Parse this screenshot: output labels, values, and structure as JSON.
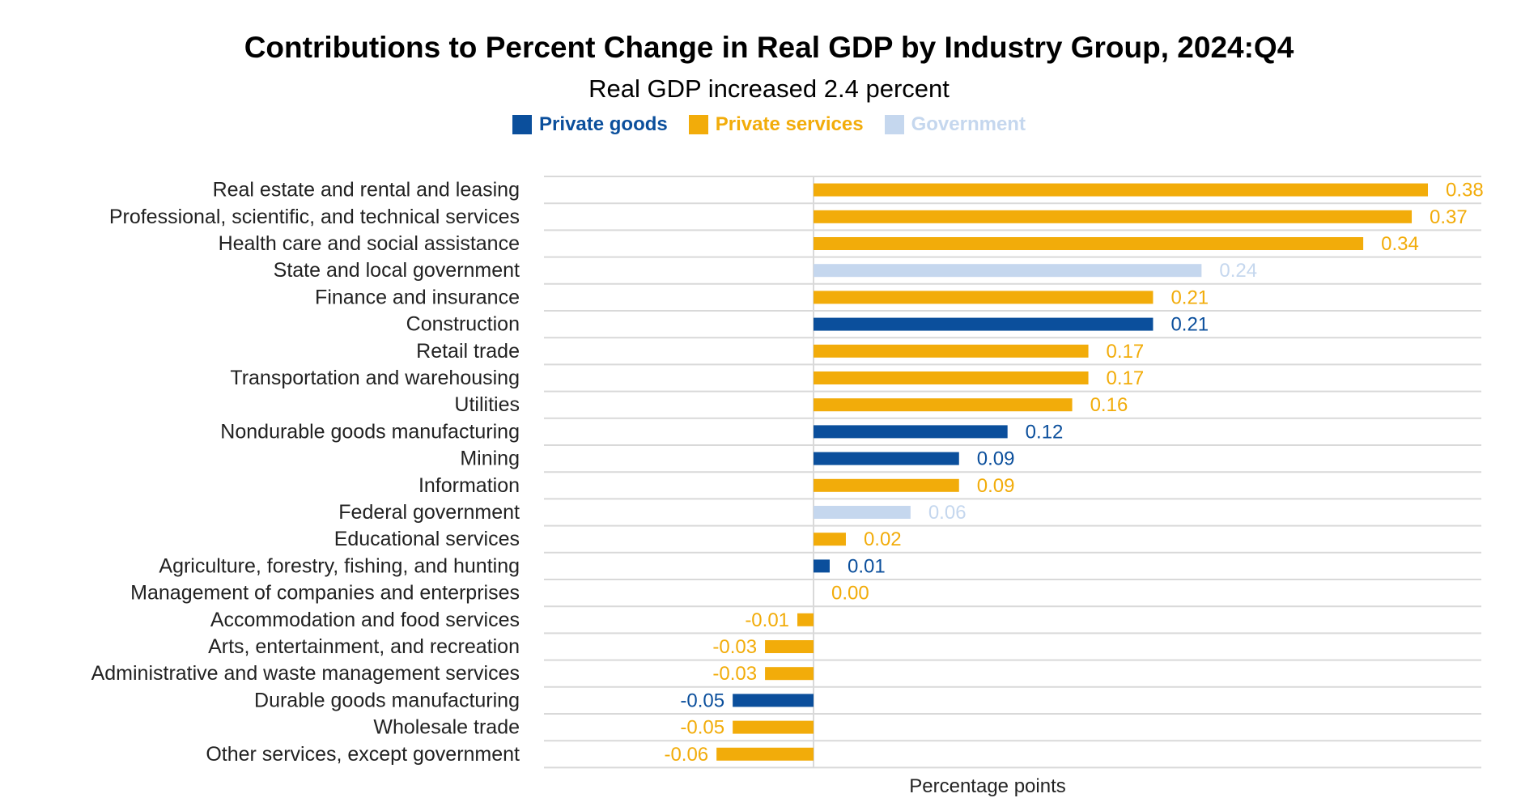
{
  "chart_data": {
    "type": "bar",
    "orientation": "horizontal",
    "title": "Contributions to Percent Change in Real GDP by Industry Group, 2024:Q4",
    "subtitle": "Real GDP increased 2.4 percent",
    "xlabel": "Percentage points",
    "ylabel": "",
    "xlim": [
      -0.17,
      0.42
    ],
    "grid": "horizontal",
    "legend_position": "top-center",
    "legend": [
      {
        "name": "Private goods",
        "color": "#0b4f9c"
      },
      {
        "name": "Private services",
        "color": "#f2ac0a"
      },
      {
        "name": "Government",
        "color": "#c5d7ee"
      }
    ],
    "bars": [
      {
        "category": "Real estate and rental and leasing",
        "value": 0.38,
        "label": "0.38",
        "group": "Private services"
      },
      {
        "category": "Professional, scientific, and technical services",
        "value": 0.37,
        "label": "0.37",
        "group": "Private services"
      },
      {
        "category": "Health care and social assistance",
        "value": 0.34,
        "label": "0.34",
        "group": "Private services"
      },
      {
        "category": "State and local government",
        "value": 0.24,
        "label": "0.24",
        "group": "Government"
      },
      {
        "category": "Finance and insurance",
        "value": 0.21,
        "label": "0.21",
        "group": "Private services"
      },
      {
        "category": "Construction",
        "value": 0.21,
        "label": "0.21",
        "group": "Private goods"
      },
      {
        "category": "Retail trade",
        "value": 0.17,
        "label": "0.17",
        "group": "Private services"
      },
      {
        "category": "Transportation and warehousing",
        "value": 0.17,
        "label": "0.17",
        "group": "Private services"
      },
      {
        "category": "Utilities",
        "value": 0.16,
        "label": "0.16",
        "group": "Private services"
      },
      {
        "category": "Nondurable goods manufacturing",
        "value": 0.12,
        "label": "0.12",
        "group": "Private goods"
      },
      {
        "category": "Mining",
        "value": 0.09,
        "label": "0.09",
        "group": "Private goods"
      },
      {
        "category": "Information",
        "value": 0.09,
        "label": "0.09",
        "group": "Private services"
      },
      {
        "category": "Federal government",
        "value": 0.06,
        "label": "0.06",
        "group": "Government"
      },
      {
        "category": "Educational services",
        "value": 0.02,
        "label": "0.02",
        "group": "Private services"
      },
      {
        "category": "Agriculture, forestry, fishing, and hunting",
        "value": 0.01,
        "label": "0.01",
        "group": "Private goods"
      },
      {
        "category": "Management of companies and enterprises",
        "value": 0.0,
        "label": "0.00",
        "group": "Private services"
      },
      {
        "category": "Accommodation and food services",
        "value": -0.01,
        "label": "-0.01",
        "group": "Private services"
      },
      {
        "category": "Arts, entertainment, and recreation",
        "value": -0.03,
        "label": "-0.03",
        "group": "Private services"
      },
      {
        "category": "Administrative and waste management services",
        "value": -0.03,
        "label": "-0.03",
        "group": "Private services"
      },
      {
        "category": "Durable goods manufacturing",
        "value": -0.05,
        "label": "-0.05",
        "group": "Private goods"
      },
      {
        "category": "Wholesale trade",
        "value": -0.05,
        "label": "-0.05",
        "group": "Private services"
      },
      {
        "category": "Other services, except government",
        "value": -0.06,
        "label": "-0.06",
        "group": "Private services"
      }
    ]
  }
}
